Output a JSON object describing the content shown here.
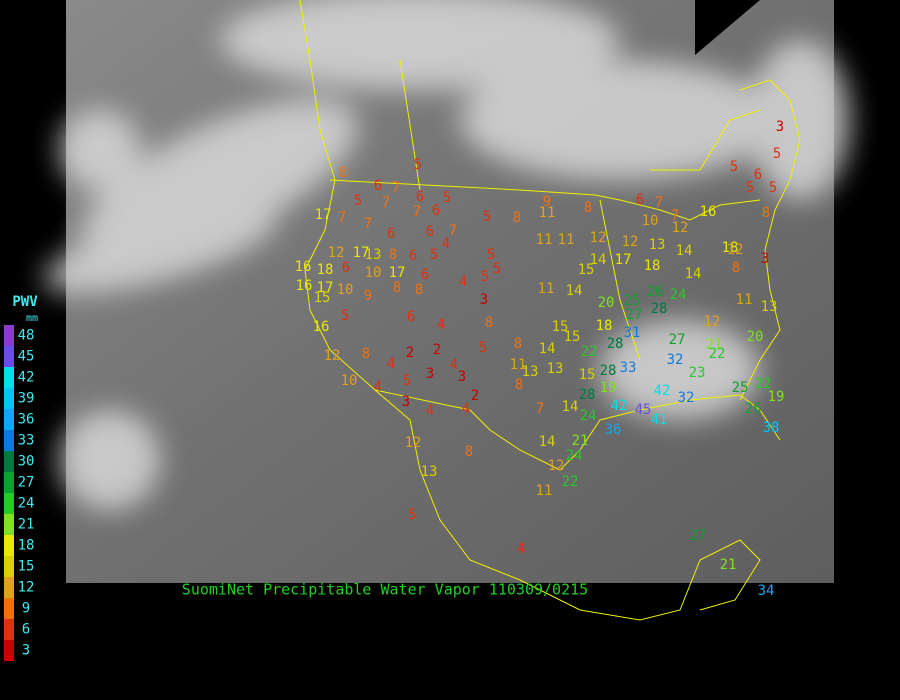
{
  "caption": "SuomiNet Precipitable Water Vapor 110309/0215",
  "legend": {
    "title": "PWV",
    "unit": "mm",
    "levels": [
      48,
      45,
      42,
      39,
      36,
      33,
      30,
      27,
      24,
      21,
      18,
      15,
      12,
      9,
      6,
      3
    ],
    "colors": [
      "#8a3cc8",
      "#6a4ee0",
      "#00e0e8",
      "#00c8f0",
      "#10a8f0",
      "#1478d8",
      "#007840",
      "#10a030",
      "#28c828",
      "#80e028",
      "#e8e800",
      "#d8d000",
      "#e0a020",
      "#f07010",
      "#e03010",
      "#c80000"
    ]
  },
  "stations": [
    5,
    8,
    6,
    7,
    6,
    5,
    5,
    7,
    7,
    6,
    5,
    8,
    9,
    11,
    8,
    17,
    7,
    7,
    6,
    6,
    7,
    4,
    11,
    11,
    12,
    12,
    13,
    12,
    16,
    14,
    18,
    8,
    5,
    5,
    6,
    5,
    3,
    5,
    6,
    7,
    10,
    7,
    12,
    17,
    13,
    8,
    6,
    5,
    5,
    16,
    18,
    6,
    10,
    17,
    6,
    4,
    5,
    5,
    15,
    14,
    17,
    18,
    14,
    8,
    12,
    3,
    16,
    17,
    10,
    9,
    8,
    8,
    3,
    11,
    14,
    20,
    25,
    26,
    24,
    28,
    27,
    11,
    13,
    15,
    5,
    6,
    4,
    8,
    15,
    15,
    18,
    31,
    28,
    27,
    12,
    21,
    20,
    16,
    12,
    8,
    4,
    2,
    2,
    5,
    8,
    11,
    14,
    22,
    32,
    22,
    10,
    4,
    5,
    3,
    4,
    3,
    8,
    13,
    13,
    15,
    28,
    33,
    23,
    7,
    14,
    28,
    19,
    42,
    32,
    25,
    22,
    19,
    3,
    4,
    2,
    4,
    24,
    42,
    45,
    41,
    26,
    38,
    36,
    21,
    14,
    12,
    8,
    24,
    12,
    22,
    13,
    11,
    5,
    4,
    27,
    21,
    34
  ]
}
